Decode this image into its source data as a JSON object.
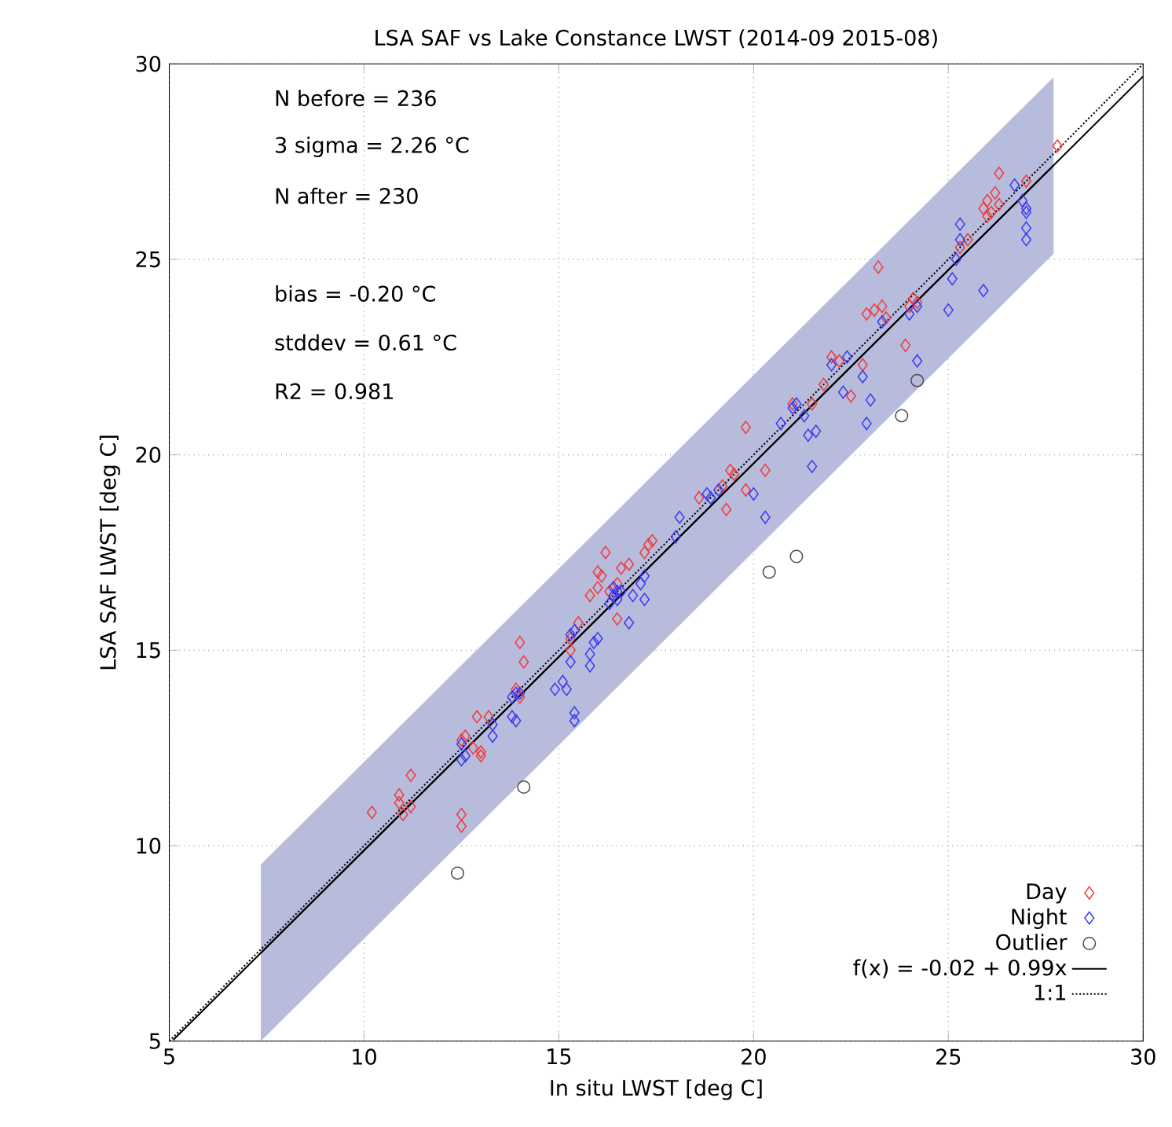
{
  "chart_data": {
    "type": "scatter",
    "title": "LSA SAF vs Lake Constance LWST (2014-09 2015-08)",
    "xlabel": "In situ LWST [deg C]",
    "ylabel": "LSA SAF LWST [deg C]",
    "xlim": [
      5,
      30
    ],
    "ylim": [
      5,
      30
    ],
    "xticks": [
      5,
      10,
      15,
      20,
      25,
      30
    ],
    "yticks": [
      5,
      10,
      15,
      20,
      25,
      30
    ],
    "grid": true,
    "legend": "bottom right",
    "annotations": [
      "N before = 236",
      "3 sigma = 2.26 °C",
      "N after = 230",
      "bias  = -0.20 °C",
      "stddev = 0.61 °C",
      "R2 = 0.981"
    ],
    "series": [
      {
        "name": "Day",
        "marker": "diamond",
        "color": "#f03c3c",
        "x": [
          10.2,
          10.9,
          10.9,
          11.0,
          11.2,
          11.2,
          12.5,
          12.5,
          12.5,
          12.6,
          12.8,
          12.9,
          13.0,
          13.2,
          13.0,
          13.9,
          14.0,
          14.1,
          14.0,
          15.3,
          15.3,
          15.5,
          15.8,
          16.0,
          16.1,
          16.2,
          16.0,
          16.3,
          16.5,
          16.5,
          16.8,
          16.6,
          17.3,
          17.4,
          17.2,
          18.6,
          19.2,
          19.4,
          19.5,
          19.3,
          19.8,
          20.3,
          19.8,
          21.0,
          21.5,
          21.8,
          22.0,
          22.2,
          22.5,
          22.8,
          22.9,
          23.1,
          23.2,
          23.3,
          23.4,
          23.9,
          24.0,
          24.1,
          24.2,
          25.3,
          25.5,
          25.9,
          26.0,
          26.0,
          26.2,
          26.3,
          26.3,
          26.1,
          27.8,
          27.0
        ],
        "values": [
          10.85,
          11.1,
          11.3,
          10.8,
          11.8,
          11.0,
          10.8,
          10.5,
          12.7,
          12.8,
          12.5,
          13.3,
          12.3,
          13.3,
          12.4,
          14.0,
          15.2,
          14.7,
          13.8,
          15.3,
          15.0,
          15.7,
          16.4,
          17.0,
          16.9,
          17.5,
          16.6,
          16.5,
          16.7,
          15.8,
          17.2,
          17.1,
          17.7,
          17.8,
          17.5,
          18.9,
          19.2,
          19.6,
          19.5,
          18.6,
          20.7,
          19.6,
          19.1,
          21.3,
          21.3,
          21.8,
          22.5,
          22.4,
          21.5,
          22.3,
          23.6,
          23.7,
          24.8,
          23.8,
          23.5,
          22.8,
          23.8,
          24.0,
          23.9,
          25.3,
          25.5,
          26.3,
          26.5,
          26.1,
          26.7,
          27.2,
          26.4,
          26.2,
          27.9,
          27.0
        ]
      },
      {
        "name": "Night",
        "marker": "diamond",
        "color": "#3c3cf0",
        "x": [
          12.5,
          12.5,
          12.6,
          13.3,
          13.3,
          13.9,
          13.8,
          13.9,
          13.8,
          14.0,
          14.9,
          15.1,
          15.2,
          15.3,
          15.3,
          15.4,
          15.4,
          15.4,
          15.8,
          15.8,
          15.9,
          16.0,
          16.3,
          16.4,
          16.4,
          16.5,
          16.5,
          16.6,
          16.8,
          16.9,
          17.1,
          17.2,
          17.2,
          18.0,
          18.1,
          18.8,
          18.9,
          19.1,
          20.0,
          20.3,
          20.7,
          21.0,
          21.1,
          21.3,
          21.4,
          21.5,
          21.6,
          22.0,
          22.3,
          22.4,
          22.8,
          22.9,
          23.0,
          23.3,
          24.0,
          24.2,
          24.2,
          25.0,
          25.1,
          25.2,
          25.3,
          25.3,
          25.9,
          26.7,
          26.9,
          27.0,
          27.0,
          27.0,
          27.0
        ],
        "values": [
          12.2,
          12.6,
          12.3,
          12.8,
          13.1,
          13.9,
          13.3,
          13.2,
          13.8,
          13.9,
          14.0,
          14.2,
          14.0,
          14.7,
          15.4,
          15.5,
          13.4,
          13.2,
          14.6,
          14.9,
          15.2,
          15.3,
          16.2,
          16.4,
          16.6,
          16.5,
          16.3,
          16.5,
          15.7,
          16.4,
          16.7,
          16.9,
          16.3,
          17.9,
          18.4,
          19.0,
          18.9,
          19.1,
          19.0,
          18.4,
          20.8,
          21.2,
          21.3,
          21.0,
          20.5,
          19.7,
          20.6,
          22.3,
          21.6,
          22.5,
          22.0,
          20.8,
          21.4,
          23.4,
          23.6,
          23.8,
          22.4,
          23.7,
          24.5,
          25.0,
          25.5,
          25.9,
          24.2,
          26.9,
          26.5,
          26.3,
          25.8,
          25.5,
          26.2
        ]
      },
      {
        "name": "Outlier",
        "marker": "circle",
        "color": "#505050",
        "x": [
          12.4,
          14.1,
          20.4,
          21.1,
          23.8,
          24.2
        ],
        "values": [
          9.3,
          11.5,
          17.0,
          17.4,
          21.0,
          21.9
        ]
      },
      {
        "type": "line",
        "marker": "none",
        "line_style": "solid",
        "color": "#000000",
        "x": [
          7.35,
          27.7
        ],
        "values": [
          7.26,
          27.4
        ],
        "lower": [
          5.0,
          25.14
        ],
        "upper": [
          9.52,
          29.66
        ]
      },
      {
        "name": "f(x) = -0.02  + 0.99x",
        "type": "line",
        "marker": "none",
        "line_style": "solid",
        "color": "#000000",
        "x": [
          5.1,
          30
        ],
        "values": [
          5.03,
          29.68
        ]
      },
      {
        "name": "1:1",
        "type": "line",
        "marker": "none",
        "line_style": "dotted",
        "color": "#000000",
        "x": [
          5,
          30
        ],
        "values": [
          5,
          30
        ]
      }
    ]
  }
}
